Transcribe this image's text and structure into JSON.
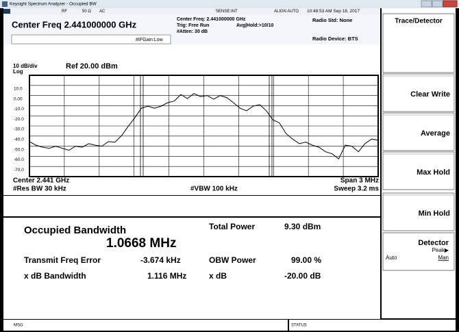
{
  "window": {
    "title": "Keysight Spectrum Analyzer - Occupied BW"
  },
  "status_line": {
    "rf": "RF",
    "impedance": "50 Ω",
    "coupling": "AC",
    "sense": "SENSE:INT",
    "align": "ALIGN AUTO",
    "time": "10:48:53 AM Sep 18, 2017"
  },
  "header": {
    "center_freq": "Center Freq 2.441000000 GHz",
    "if_gain": "#IFGain:Low",
    "center_freq_info": "Center Freq: 2.441000000 GHz",
    "trig": "Trig: Free Run",
    "atten": "#Atten: 30 dB",
    "avg_hold": "Avg|Hold:>10/10",
    "radio_std": "Radio Std: None",
    "radio_device": "Radio Device: BTS"
  },
  "graph": {
    "scale": "10 dB/div",
    "ref": "Ref 20.00 dBm",
    "log": "Log",
    "center": "Center  2.441 GHz",
    "span": "Span 3 MHz",
    "res_bw": "#Res BW  30 kHz",
    "vbw": "#VBW  100 kHz",
    "sweep": "Sweep  3.2 ms"
  },
  "chart_data": {
    "type": "line",
    "ylim": [
      -80,
      20
    ],
    "yticks": [
      {
        "value": 10,
        "label": "10.0"
      },
      {
        "value": 0,
        "label": "0.00"
      },
      {
        "value": -10,
        "label": "-10.0"
      },
      {
        "value": -20,
        "label": "-20.0"
      },
      {
        "value": -30,
        "label": "-30.0"
      },
      {
        "value": -40,
        "label": "-40.0"
      },
      {
        "value": -50,
        "label": "-50.0"
      },
      {
        "value": -60,
        "label": "-60.0"
      },
      {
        "value": -70,
        "label": "-70.0"
      }
    ],
    "grid": true,
    "color": "#000000",
    "values": [
      -45.5,
      -49,
      -51,
      -52,
      -50,
      -52,
      -54,
      -50,
      -51,
      -47.5,
      -49,
      -50,
      -45.5,
      -46,
      -39.5,
      -30.5,
      -22,
      -12.5,
      -10.5,
      -12.5,
      -10.5,
      -7,
      -5.5,
      1,
      -3,
      2,
      -1,
      0,
      -3.5,
      0,
      -2,
      -7,
      -12.5,
      -15,
      -10.5,
      -9,
      -15,
      -24,
      -27,
      -37.5,
      -43,
      -47.5,
      -46,
      -49,
      -51,
      -55.5,
      -57.5,
      -62.5,
      -49,
      -50,
      -55.5,
      -47.5,
      -43,
      -44
    ]
  },
  "results": {
    "obw_title": "Occupied Bandwidth",
    "obw_value": "1.0668 MHz",
    "freq_error_label": "Transmit Freq Error",
    "freq_error_value": "-3.674 kHz",
    "xdb_bw_label": "x dB Bandwidth",
    "xdb_bw_value": "1.116 MHz",
    "total_power_label": "Total Power",
    "total_power_value": "9.30 dBm",
    "obw_power_label": "OBW Power",
    "obw_power_value": "99.00 %",
    "xdb_label": "x dB",
    "xdb_value": "-20.00 dB"
  },
  "menu": {
    "title": "Trace/Detector",
    "buttons": [
      "Clear Write",
      "Average",
      "Max Hold",
      "Min Hold"
    ],
    "detector": {
      "label": "Detector",
      "value": "Peak▶",
      "auto": "Auto",
      "man": "Man"
    }
  },
  "status_bar": {
    "msg": "MSG",
    "status": "STATUS"
  }
}
